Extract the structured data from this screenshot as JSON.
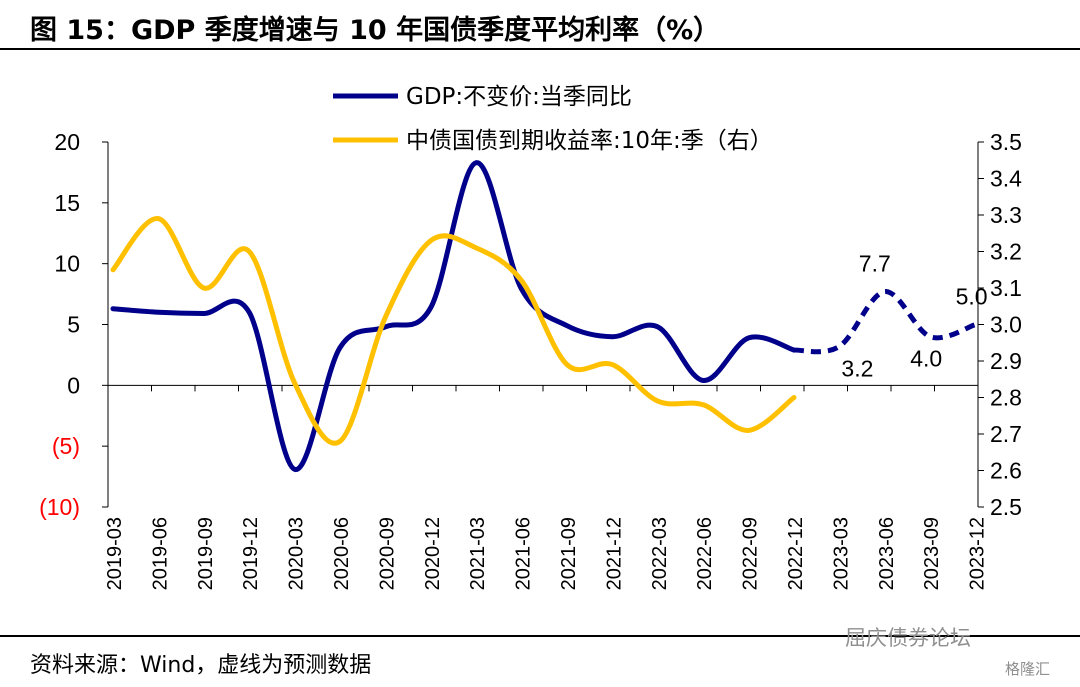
{
  "header": {
    "title": "图 15：GDP 季度增速与 10 年国债季度平均利率（%）"
  },
  "footer": {
    "source": "资料来源：Wind，虚线为预测数据",
    "watermark": "屈庆债券论坛",
    "watermark2": "格隆汇"
  },
  "chart_data": {
    "type": "line",
    "categories": [
      "2019-03",
      "2019-06",
      "2019-09",
      "2019-12",
      "2020-03",
      "2020-06",
      "2020-09",
      "2020-12",
      "2021-03",
      "2021-06",
      "2021-09",
      "2021-12",
      "2022-03",
      "2022-06",
      "2022-09",
      "2022-12",
      "2023-03",
      "2023-06",
      "2023-09",
      "2023-12"
    ],
    "y_left": {
      "range": [
        -10,
        20
      ],
      "ticks": [
        "20",
        "15",
        "10",
        "5",
        "0",
        "(5)",
        "(10)"
      ],
      "tick_values": [
        20,
        15,
        10,
        5,
        0,
        -5,
        -10
      ],
      "negative_color": "#ff0000"
    },
    "y_right": {
      "range": [
        2.5,
        3.5
      ],
      "ticks": [
        "3.5",
        "3.4",
        "3.3",
        "3.2",
        "3.1",
        "3.0",
        "2.9",
        "2.8",
        "2.7",
        "2.6",
        "2.5"
      ],
      "tick_values": [
        3.5,
        3.4,
        3.3,
        3.2,
        3.1,
        3.0,
        2.9,
        2.8,
        2.7,
        2.6,
        2.5
      ]
    },
    "legend": {
      "placement": "top-center"
    },
    "grid": false,
    "series": [
      {
        "name": "GDP:不变价:当季同比",
        "axis": "left",
        "color": "#00008b",
        "values": [
          6.3,
          6.0,
          5.9,
          6.0,
          -6.9,
          3.1,
          4.8,
          6.4,
          18.3,
          7.9,
          4.9,
          4.0,
          4.8,
          0.4,
          3.9,
          2.9,
          null,
          null,
          null,
          null
        ],
        "forecast": {
          "style": "dashed",
          "start_index": 15,
          "values": [
            2.9,
            3.2,
            7.7,
            4.0,
            5.0
          ]
        }
      },
      {
        "name": "中债国债到期收益率:10年:季（右）",
        "axis": "right",
        "color": "#ffc000",
        "values": [
          3.15,
          3.29,
          3.1,
          3.2,
          2.84,
          2.68,
          3.02,
          3.23,
          3.21,
          3.12,
          2.89,
          2.89,
          2.79,
          2.78,
          2.71,
          2.8,
          null,
          null,
          null,
          null
        ]
      }
    ],
    "annotations": [
      {
        "label": "3.2",
        "index": 16,
        "series": 0,
        "value": 3.2
      },
      {
        "label": "7.7",
        "index": 17,
        "series": 0,
        "value": 7.7
      },
      {
        "label": "4.0",
        "index": 18,
        "series": 0,
        "value": 4.0
      },
      {
        "label": "5.0",
        "index": 19,
        "series": 0,
        "value": 5.0
      }
    ]
  }
}
